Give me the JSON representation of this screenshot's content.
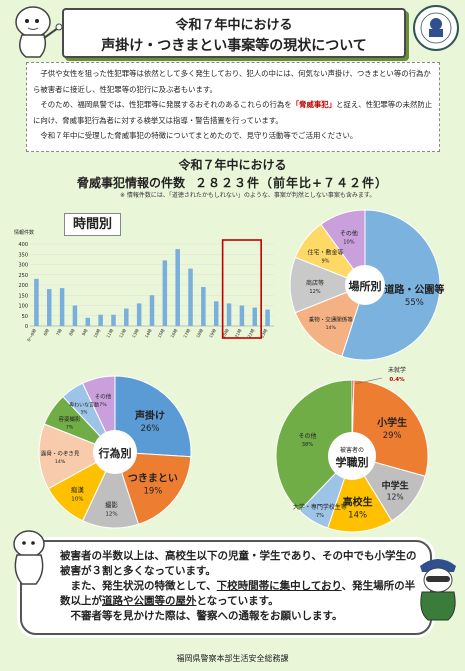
{
  "header": {
    "title_line1": "令和７年中における",
    "title_line2": "声掛け・つきまとい事案等の現状について",
    "badge_text": "Fukuoka Prefectural Police"
  },
  "intro": {
    "p1": "子供や女性を狙った性犯罪等は依然として多く発生しており、犯人の中には、何気ない声掛け、つきまとい等の行為から被害者に接近し、性犯罪等の犯行に及ぶ者もいます。",
    "p2a": "そのため、福岡県警では、性犯罪等に発展するおそれのあるこれらの行為を",
    "p2_highlight": "「脅威事犯」",
    "p2b": "と捉え、性犯罪等の未然防止に向け、脅威事犯行為者に対する検挙又は指導・警告措置を行っています。",
    "p3": "令和７年中に受理した脅威事犯の特徴についてまとめたので、見守り活動等でご活用ください。"
  },
  "stats": {
    "year": "令和７年中における",
    "label": "脅威事犯情報の件数",
    "count": "２８２３件（前年比+７４２件）",
    "note": "※ 情報件数には、「道徳されたかもしれない」のような、事案が判然としない事案も含みます。"
  },
  "chart_data": [
    {
      "type": "bar",
      "title": "時間別",
      "ylabel": "情報件数",
      "ylim": [
        0,
        400
      ],
      "yticks": [
        0,
        50,
        100,
        150,
        200,
        250,
        300,
        350,
        400
      ],
      "categories": [
        "0～6時",
        "6時",
        "7時",
        "8時",
        "9時",
        "10時",
        "11時",
        "12時",
        "13時",
        "14時",
        "15時",
        "16時",
        "17時",
        "18時",
        "19時",
        "20時",
        "21時",
        "22時",
        "23時"
      ],
      "values": [
        230,
        180,
        185,
        100,
        40,
        55,
        55,
        85,
        110,
        150,
        320,
        375,
        280,
        190,
        120,
        110,
        100,
        90,
        80
      ],
      "highlight": [
        15,
        16,
        17
      ],
      "colors": {
        "bar": "#7aaedc",
        "highlight_box": "#c00000"
      }
    },
    {
      "type": "pie",
      "title": "場所別",
      "slices": [
        {
          "label": "道路・公園等",
          "value": 55,
          "text": "55%",
          "color": "#7bb2de"
        },
        {
          "label": "乗物・交通関係等",
          "value": 14,
          "text": "14%",
          "color": "#f4b183"
        },
        {
          "label": "商店等",
          "value": 12,
          "text": "12%",
          "color": "#c9c9c9"
        },
        {
          "label": "住宅・敷金等",
          "value": 9,
          "text": "9%",
          "color": "#ffd966"
        },
        {
          "label": "その他",
          "value": 10,
          "text": "10%",
          "color": "#c9a0dc"
        }
      ]
    },
    {
      "type": "pie",
      "title": "行為別",
      "slices": [
        {
          "label": "声掛け",
          "value": 26,
          "text": "26%",
          "color": "#5b9bd5"
        },
        {
          "label": "つきまとい",
          "value": 19,
          "text": "19%",
          "color": "#ed7d31"
        },
        {
          "label": "撮影",
          "value": 12,
          "text": "12%",
          "color": "#bfbfbf"
        },
        {
          "label": "痴漢",
          "value": 10,
          "text": "10%",
          "color": "#ffc000"
        },
        {
          "label": "露骨・のぞき見",
          "value": 14,
          "text": "14%",
          "color": "#f8cbad"
        },
        {
          "label": "容姿撮影",
          "value": 7,
          "text": "7%",
          "color": "#70ad47"
        },
        {
          "label": "卑わいな言動",
          "value": 5,
          "text": "5%",
          "color": "#9dc3e6"
        },
        {
          "label": "その他",
          "value": 7,
          "text": "7%",
          "color": "#c9a0dc"
        }
      ]
    },
    {
      "type": "pie",
      "title": "学職別",
      "center_label": "被害者の",
      "slices": [
        {
          "label": "未就学",
          "value": 0.4,
          "text": "0.4%",
          "color": "#c00000"
        },
        {
          "label": "小学生",
          "value": 29,
          "text": "29%",
          "color": "#ed7d31"
        },
        {
          "label": "中学生",
          "value": 12,
          "text": "12%",
          "color": "#bfbfbf"
        },
        {
          "label": "高校生",
          "value": 14,
          "text": "14%",
          "color": "#ffc000"
        },
        {
          "label": "大学・専門学校生等",
          "value": 7,
          "text": "7%",
          "color": "#9dc3e6"
        },
        {
          "label": "その他",
          "value": 38,
          "text": "38%",
          "color": "#70ad47"
        }
      ]
    }
  ],
  "summary": {
    "l1": "被害者の半数以上は、高校生以下の児童・学生であり、その中でも小学生の被害が３割と多くなっています。",
    "l2a": "また、発生状況の特徴として、",
    "l2b": "下校時間帯に集中しており",
    "l2c": "、発生場所の半数以上が",
    "l2d": "道路や公園等の屋外",
    "l2e": "となっています。",
    "l3": "不審者等を見かけた際は、警察への通報をお願いします。"
  },
  "footer": "福岡県警察本部生活安全総務課"
}
